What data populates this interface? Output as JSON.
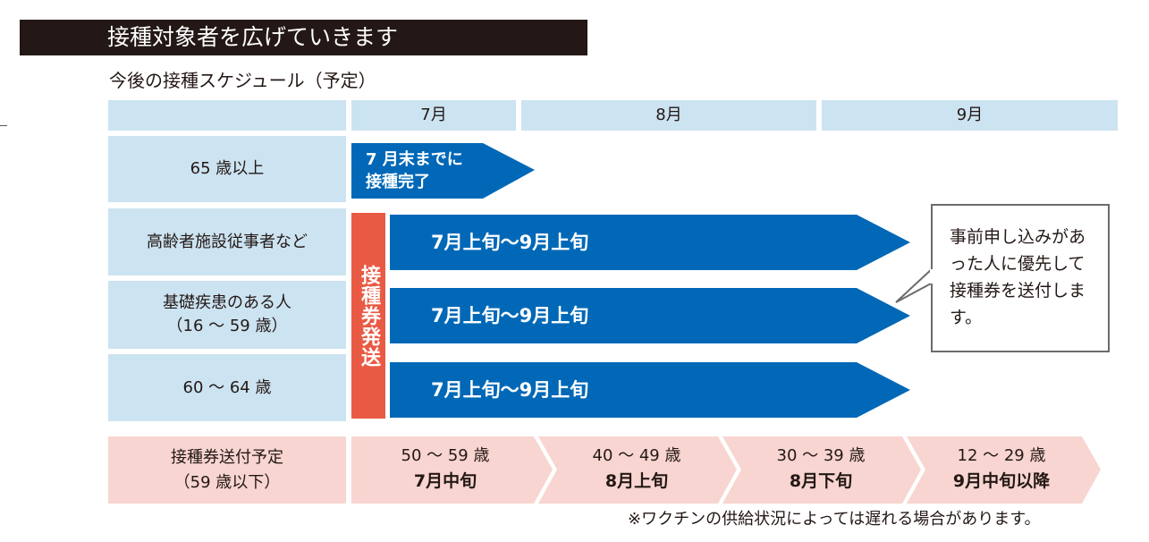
{
  "title": "接種対象者を広げていきます",
  "subtitle": "今後の接種スケジュール（予定）",
  "months": [
    "7月",
    "8月",
    "9月"
  ],
  "rows": [
    {
      "label": "65 歳以上"
    },
    {
      "label": "高齢者施設従事者など"
    },
    {
      "label_line1": "基礎疾患のある人",
      "label_line2": "（16 ～ 59 歳）"
    },
    {
      "label": "60 ～ 64 歳"
    }
  ],
  "first_arrow": {
    "line1": "7 月末までに",
    "line2": "接種完了"
  },
  "vouchers_sent": "接種券発送",
  "period_arrows": [
    "7月上旬～9月上旬",
    "7月上旬～9月上旬",
    "7月上旬～9月上旬"
  ],
  "note": "事前申し込みがあった人に優先して接種券を送付します。",
  "schedule": {
    "label_line1": "接種券送付予定",
    "label_line2": "（59 歳以下）",
    "steps": [
      {
        "ages": "50 ～ 59 歳",
        "when": "7月中旬"
      },
      {
        "ages": "40 ～ 49 歳",
        "when": "8月上旬"
      },
      {
        "ages": "30 ～ 39 歳",
        "when": "8月下旬"
      },
      {
        "ages": "12 ～ 29 歳",
        "when": "9月中旬以降"
      }
    ]
  },
  "footnote": "※ワクチンの供給状況によっては遅れる場合があります。",
  "colors": {
    "header_blue": "#cce3f1",
    "arrow_blue": "#0068b7",
    "vertical_bar": "#e95a44",
    "schedule_pink": "#f8d5d0",
    "title_bar": "#231815"
  }
}
